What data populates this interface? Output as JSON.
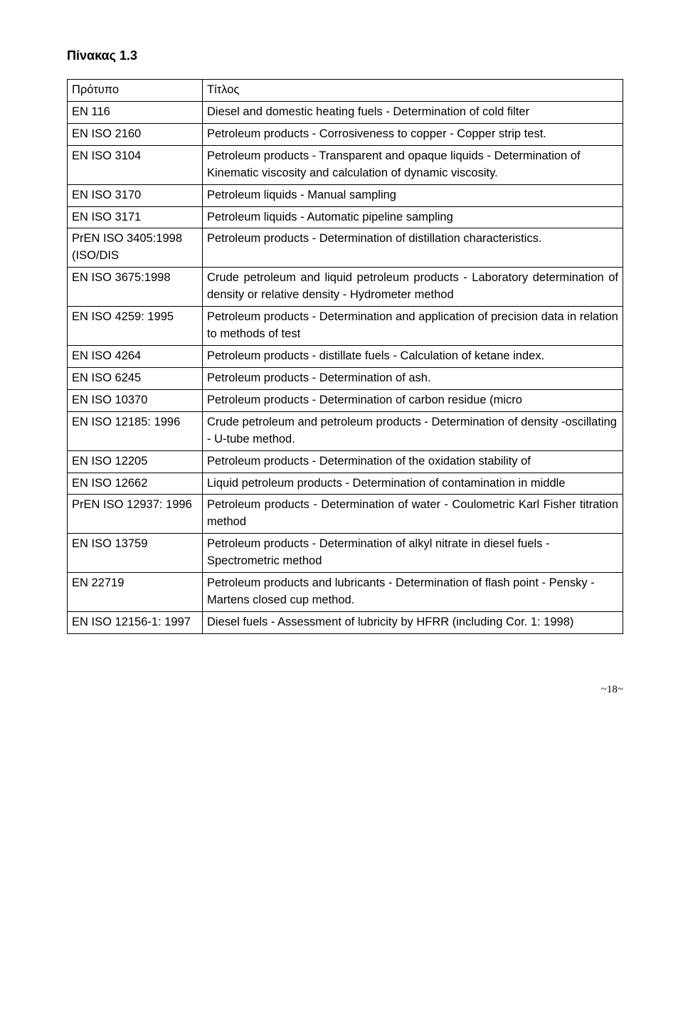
{
  "heading": "Πίνακας 1.3",
  "table": {
    "header": {
      "col1": "Πρότυπο",
      "col2": "Τίτλος"
    },
    "rows": [
      {
        "c1": "EN 116",
        "c2": "Diesel and domestic heating fuels - Determination of cold filter"
      },
      {
        "c1": "EN ISO 2160",
        "c2": "Petroleum products - Corrosiveness to copper - Copper strip test."
      },
      {
        "c1": "EN ISO 3104",
        "c2": "Petroleum products - Transparent and opaque liquids - Determination of Kinematic viscosity and calculation of dynamic viscosity."
      },
      {
        "c1": "EN ISO 3170",
        "c2": "Petroleum liquids - Manual sampling"
      },
      {
        "c1": "EN ISO 3171",
        "c2": "Petroleum liquids - Automatic pipeline sampling"
      },
      {
        "c1": "PrEN ISO 3405:1998 (ISO/DIS",
        "c2": "Petroleum products - Determination of distillation characteristics."
      },
      {
        "c1": "EN ISO 3675:1998",
        "c2": "Crude petroleum and liquid petroleum products - Laboratory determination of density or relative density - Hydrometer method"
      },
      {
        "c1": "EN ISO 4259: 1995",
        "c2": "Petroleum products - Determination and application of precision data in relation to methods of test"
      },
      {
        "c1": "EN ISO 4264",
        "c2": "Petroleum products - distillate fuels - Calculation of ketane index."
      },
      {
        "c1": "EN ISO 6245",
        "c2": "Petroleum products - Determination of ash."
      },
      {
        "c1": "EN ISO 10370",
        "c2": "Petroleum products - Determination of carbon residue (micro"
      },
      {
        "c1": "EN ISO 12185: 1996",
        "c2": "Crude petroleum and petroleum products - Determination of density -oscillating - U-tube method."
      },
      {
        "c1": "EN ISO 12205",
        "c2": "Petroleum products - Determination of the oxidation stability of"
      },
      {
        "c1": "EN ISO 12662",
        "c2": "Liquid petroleum products - Determination of contamination in middle"
      },
      {
        "c1": "PrEN ISO 12937: 1996",
        "c2": "Petroleum products - Determination of water - Coulometric Karl Fisher titration method"
      },
      {
        "c1": "EN ISO 13759",
        "c2": "Petroleum products - Determination of alkyl nitrate in diesel fuels - Spectrometric method"
      },
      {
        "c1": "EN 22719",
        "c2": "Petroleum products and lubricants - Determination of flash point - Pensky -Martens closed cup method."
      },
      {
        "c1": "EN ISO 12156-1: 1997",
        "c2": "Diesel fuels - Assessment of lubricity by HFRR (including Cor. 1: 1998)"
      }
    ],
    "justify_rows": [
      6,
      14
    ]
  },
  "pagenum": "~18~"
}
